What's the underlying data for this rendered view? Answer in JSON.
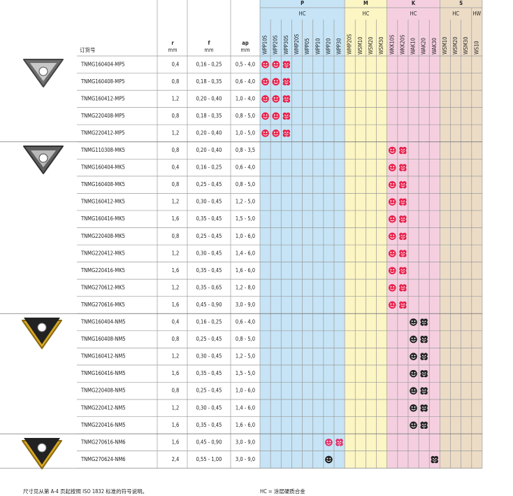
{
  "header": {
    "order_no": "订货号",
    "r": "r",
    "r_unit": "mm",
    "f": "f",
    "f_unit": "mm",
    "ap": "ap",
    "ap_unit": "mm"
  },
  "groups": [
    {
      "name": "P",
      "coatings": [
        {
          "label": "HC",
          "grades": [
            "WPP10S",
            "WPP20S",
            "WPP30S",
            "WMP20S",
            "WPP05",
            "WPP10",
            "WPP20",
            "WPP30"
          ]
        }
      ]
    },
    {
      "name": "M",
      "coatings": [
        {
          "label": "HC",
          "grades": [
            "WMP20S",
            "WSM10",
            "WSM20",
            "WSM30"
          ]
        }
      ]
    },
    {
      "name": "K",
      "coatings": [
        {
          "label": "HC",
          "grades": [
            "WKK10S",
            "WKK20S",
            "WAK10",
            "WAK20",
            "WAK30"
          ]
        }
      ]
    },
    {
      "name": "S",
      "coatings": [
        {
          "label": "HC",
          "grades": [
            "WSM10",
            "WSM20",
            "WSM30"
          ]
        },
        {
          "label": "HW",
          "grades": [
            "WS10"
          ]
        }
      ]
    }
  ],
  "rows": [
    [
      "TNMG160404-MP5",
      "0,4",
      "0,16 - 0,25",
      "0,5 - 4,0"
    ],
    [
      "TNMG160408-MP5",
      "0,8",
      "0,18 - 0,35",
      "0,6 - 4,0"
    ],
    [
      "TNMG160412-MP5",
      "1,2",
      "0,20 - 0,40",
      "1,0 - 4,0"
    ],
    [
      "TNMG220408-MP5",
      "0,8",
      "0,18 - 0,35",
      "0,8 - 5,0"
    ],
    [
      "TNMG220412-MP5",
      "1,2",
      "0,20 - 0,40",
      "1,0 - 5,0"
    ],
    [
      "TNMG110308-MK5",
      "0,8",
      "0,20 - 0,40",
      "0,8 - 3,5"
    ],
    [
      "TNMG160404-MK5",
      "0,4",
      "0,16 - 0,25",
      "0,6 - 4,0"
    ],
    [
      "TNMG160408-MK5",
      "0,8",
      "0,25 - 0,45",
      "0,8 - 5,0"
    ],
    [
      "TNMG160412-MK5",
      "1,2",
      "0,30 - 0,45",
      "1,2 - 5,0"
    ],
    [
      "TNMG160416-MK5",
      "1,6",
      "0,35 - 0,45",
      "1,5 - 5,0"
    ],
    [
      "TNMG220408-MK5",
      "0,8",
      "0,25 - 0,45",
      "1,0 - 6,0"
    ],
    [
      "TNMG220412-MK5",
      "1,2",
      "0,30 - 0,45",
      "1,4 - 6,0"
    ],
    [
      "TNMG220416-MK5",
      "1,6",
      "0,35 - 0,45",
      "1,6 - 6,0"
    ],
    [
      "TNMG270612-MK5",
      "1,2",
      "0,35 - 0,65",
      "1,2 - 8,0"
    ],
    [
      "TNMG270616-MK5",
      "1,6",
      "0,45 - 0,90",
      "3,0 - 9,0"
    ],
    [
      "TNMG160404-NM5",
      "0,4",
      "0,16 - 0,25",
      "0,6 - 4,0"
    ],
    [
      "TNMG160408-NM5",
      "0,8",
      "0,25 - 0,45",
      "0,8 - 5,0"
    ],
    [
      "TNMG160412-NM5",
      "1,2",
      "0,30 - 0,45",
      "1,2 - 5,0"
    ],
    [
      "TNMG160416-NM5",
      "1,6",
      "0,35 - 0,45",
      "1,5 - 5,0"
    ],
    [
      "TNMG220408-NM5",
      "0,8",
      "0,25 - 0,45",
      "1,0 - 6,0"
    ],
    [
      "TNMG220412-NM5",
      "1,2",
      "0,30 - 0,45",
      "1,4 - 6,0"
    ],
    [
      "TNMG220416-NM5",
      "1,6",
      "0,35 - 0,45",
      "1,6 - 6,0"
    ],
    [
      "TNMG270616-NM6",
      "1,6",
      "0,45 - 0,90",
      "3,0 - 9,0"
    ],
    [
      "TNMG270624-NM6",
      "2,4",
      "0,55 - 1,00",
      "3,0 - 9,0"
    ]
  ],
  "footer": {
    "note": "尺寸见从第 A-4 页起按照 ISO 1832 标准的符号说明。",
    "legend": "HC = 涂层硬质合金"
  }
}
